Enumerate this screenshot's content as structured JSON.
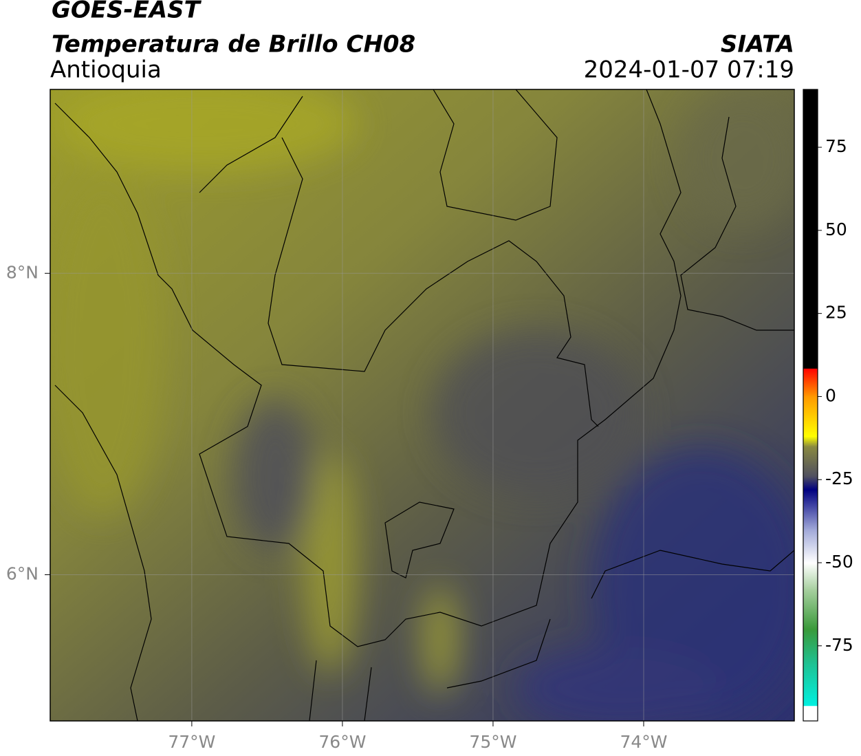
{
  "header": {
    "satellite": "GOES-EAST",
    "product": "Temperatura de Brillo CH08",
    "region": "Antioquia",
    "source": "SIATA",
    "datetime": "2024-01-07 07:19"
  },
  "map": {
    "xlim": [
      -77.94,
      -73.0
    ],
    "ylim": [
      5.03,
      9.22
    ],
    "xticks": [
      {
        "value": -77,
        "label": "77°W"
      },
      {
        "value": -76,
        "label": "76°W"
      },
      {
        "value": -75,
        "label": "75°W"
      },
      {
        "value": -74,
        "label": "74°W"
      }
    ],
    "yticks": [
      {
        "value": 8,
        "label": "8°N"
      },
      {
        "value": 6,
        "label": "6°N"
      }
    ],
    "grid": true
  },
  "colorbar": {
    "lim": [
      -97.6,
      92.4
    ],
    "ticks": [
      75,
      50,
      25,
      0,
      -25,
      -50,
      -75
    ],
    "stops": [
      {
        "value": -97.6,
        "color": "#ffffff"
      },
      {
        "value": -93,
        "color": "#ffffff"
      },
      {
        "value": -93,
        "color": "#00f0e0"
      },
      {
        "value": -80,
        "color": "#20c090"
      },
      {
        "value": -70,
        "color": "#3a9a3a"
      },
      {
        "value": -58,
        "color": "#a8d0a0"
      },
      {
        "value": -50,
        "color": "#ffffff"
      },
      {
        "value": -40,
        "color": "#a0a8d8"
      },
      {
        "value": -28,
        "color": "#000080"
      },
      {
        "value": -24,
        "color": "#505060"
      },
      {
        "value": -15,
        "color": "#8a8a40"
      },
      {
        "value": -12,
        "color": "#ffff00"
      },
      {
        "value": 0,
        "color": "#ff9900"
      },
      {
        "value": 8.5,
        "color": "#ff0000"
      },
      {
        "value": 8.5,
        "color": "#000000"
      },
      {
        "value": 92.4,
        "color": "#000000"
      }
    ]
  }
}
